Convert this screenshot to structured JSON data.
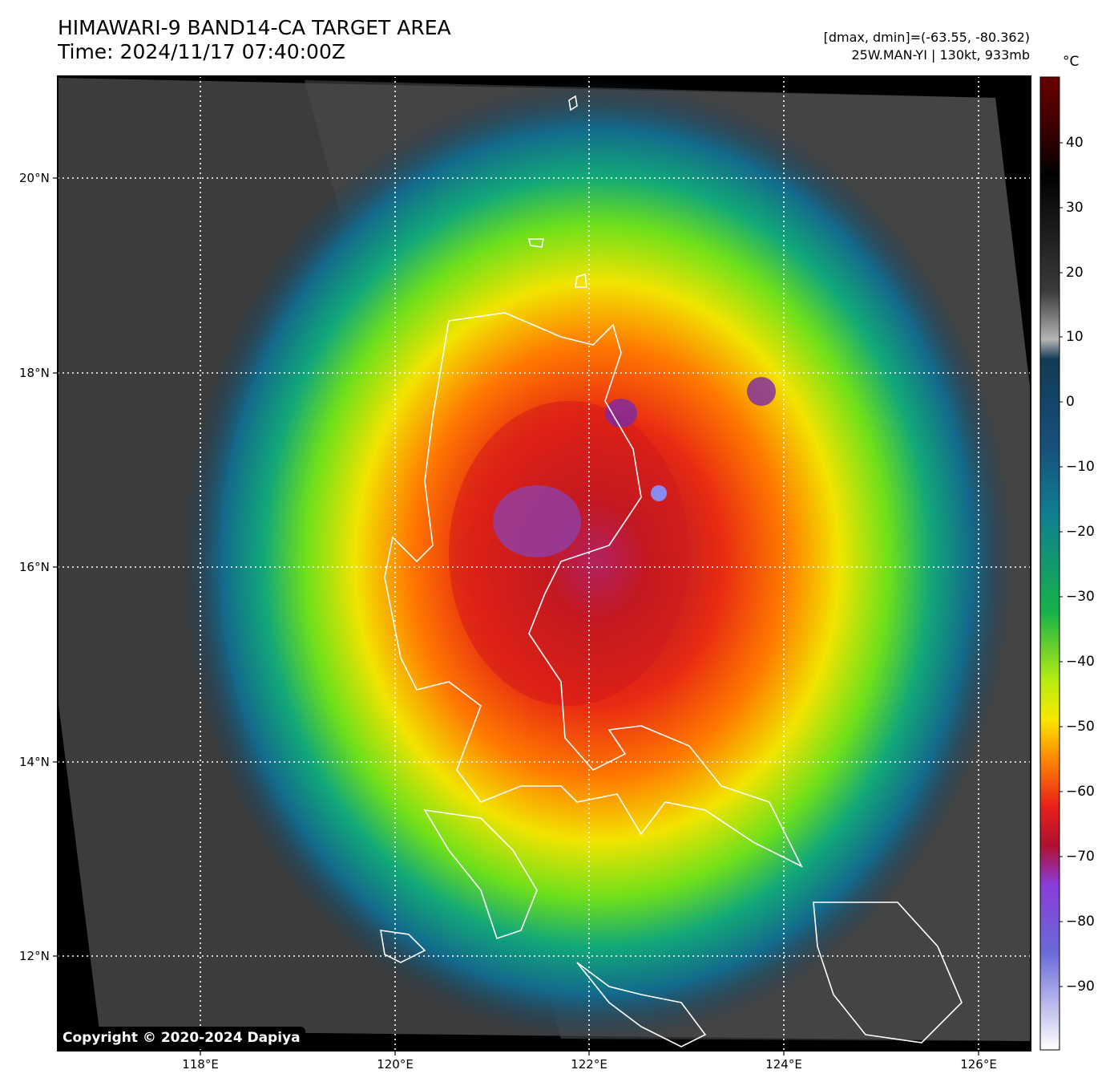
{
  "title": {
    "line1": "HIMAWARI-9 BAND14-CA TARGET AREA",
    "line2": "Time: 2024/11/17 07:40:00Z"
  },
  "meta": {
    "line1": "[dmax, dmin]=(-63.55, -80.362)",
    "line2": "25W.MAN-YI | 130kt, 933mb"
  },
  "x_ticks": [
    "118°E",
    "120°E",
    "122°E",
    "124°E",
    "126°E"
  ],
  "y_ticks": [
    "20°N",
    "18°N",
    "16°N",
    "14°N",
    "12°N"
  ],
  "colorbar": {
    "unit": "°C",
    "ticks": [
      "40",
      "30",
      "20",
      "10",
      "0",
      "−10",
      "−20",
      "−30",
      "−40",
      "−50",
      "−60",
      "−70",
      "−80",
      "−90"
    ],
    "min": -100,
    "max": 50
  },
  "copyright": "Copyright © 2020-2024 Dapiya"
}
